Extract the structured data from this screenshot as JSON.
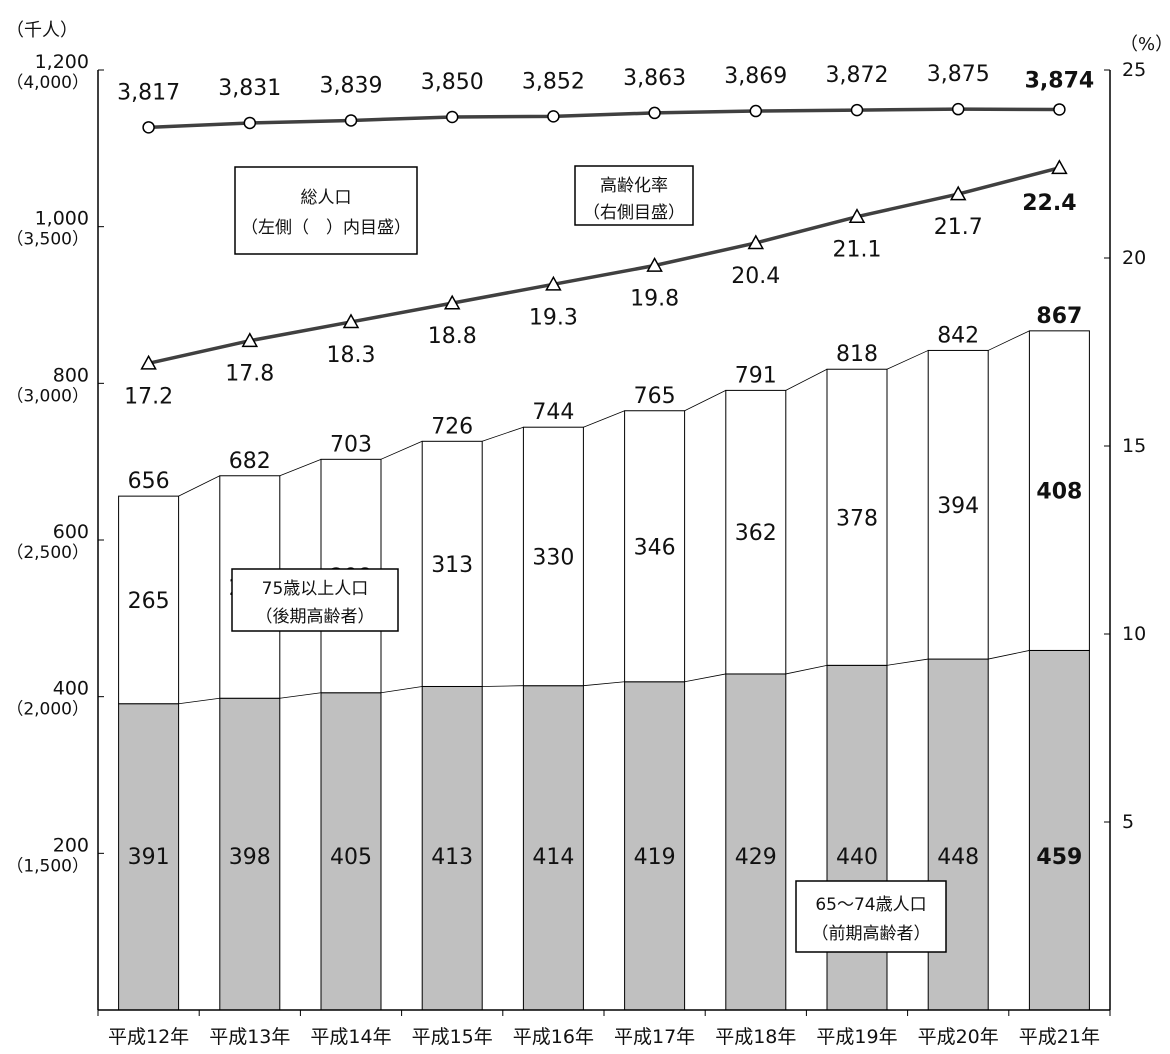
{
  "chart_data": {
    "type": "bar",
    "stacked": true,
    "left_unit": "（千人）",
    "right_unit": "（%）",
    "categories": [
      "平成12年",
      "平成13年",
      "平成14年",
      "平成15年",
      "平成16年",
      "平成17年",
      "平成18年",
      "平成19年",
      "平成20年",
      "平成21年"
    ],
    "series": [
      {
        "name": "65～74歳人口（前期高齢者）",
        "color": "#c0c0c0",
        "values": [
          391,
          398,
          405,
          413,
          414,
          419,
          429,
          440,
          448,
          459
        ]
      },
      {
        "name": "75歳以上人口（後期高齢者）",
        "color": "#ffffff",
        "values": [
          265,
          284,
          298,
          313,
          330,
          346,
          362,
          378,
          394,
          408
        ]
      }
    ],
    "bar_totals": [
      656,
      682,
      703,
      726,
      744,
      765,
      791,
      818,
      842,
      867
    ],
    "total_population": {
      "name": "総人口（左側（ ）内目盛）",
      "values": [
        3817,
        3831,
        3839,
        3850,
        3852,
        3863,
        3869,
        3872,
        3875,
        3874
      ],
      "labels": [
        "3,817",
        "3,831",
        "3,839",
        "3,850",
        "3,852",
        "3,863",
        "3,869",
        "3,872",
        "3,875",
        "3,874"
      ]
    },
    "aging_rate": {
      "name": "高齢化率（右側目盛）",
      "values": [
        17.2,
        17.8,
        18.3,
        18.8,
        19.3,
        19.8,
        20.4,
        21.1,
        21.7,
        22.4
      ],
      "labels": [
        "17.2",
        "17.8",
        "18.3",
        "18.8",
        "19.3",
        "19.8",
        "20.4",
        "21.1",
        "21.7",
        "22.4"
      ]
    },
    "left_axis": {
      "ylim": [
        0,
        1200
      ],
      "ticks": [
        {
          "value": 200,
          "label": "200",
          "sub": "（1,500）"
        },
        {
          "value": 400,
          "label": "400",
          "sub": "（2,000）"
        },
        {
          "value": 600,
          "label": "600",
          "sub": "（2,500）"
        },
        {
          "value": 800,
          "label": "800",
          "sub": "（3,000）"
        },
        {
          "value": 1000,
          "label": "1,000",
          "sub": "（3,500）"
        },
        {
          "value": 1200,
          "label": "1,200",
          "sub": "（4,000）"
        }
      ],
      "total_scale": {
        "at_200": 1500,
        "at_1200": 4000
      }
    },
    "right_axis": {
      "ylim": [
        0,
        25
      ],
      "ticks": [
        {
          "value": 5,
          "label": "5"
        },
        {
          "value": 10,
          "label": "10"
        },
        {
          "value": 15,
          "label": "15"
        },
        {
          "value": 20,
          "label": "20"
        },
        {
          "value": 25,
          "label": "25"
        }
      ]
    },
    "annotations": {
      "total_box": [
        "総人口",
        "（左側（　）内目盛）"
      ],
      "rate_box": [
        "高齢化率",
        "（右側目盛）"
      ],
      "late_box": [
        "75歳以上人口",
        "（後期高齢者）"
      ],
      "early_box": [
        "65～74歳人口",
        "（前期高齢者）"
      ]
    },
    "colors": {
      "early": "#c0c0c0",
      "late": "#ffffff",
      "line": "#404040"
    }
  }
}
